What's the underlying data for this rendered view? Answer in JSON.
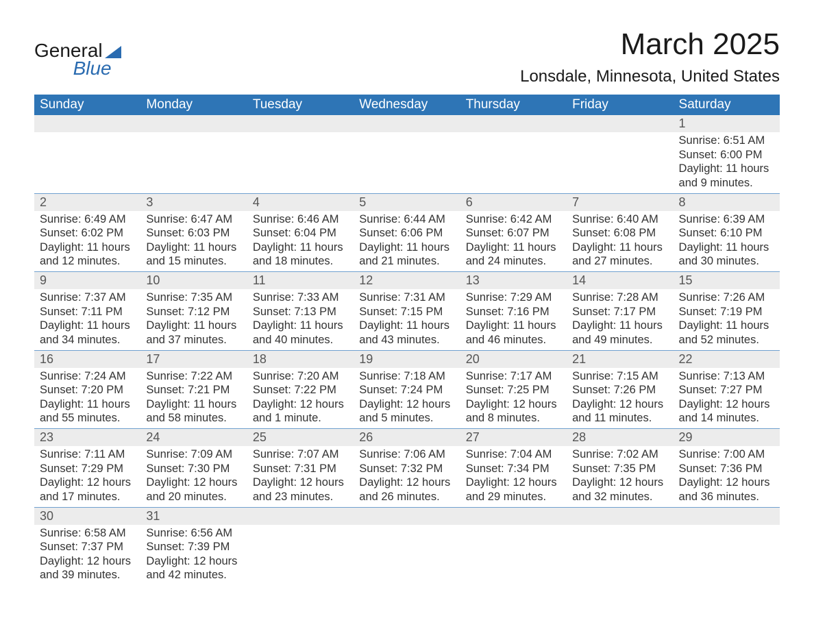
{
  "logo": {
    "line1": "General",
    "line2": "Blue"
  },
  "title": "March 2025",
  "location": "Lonsdale, Minnesota, United States",
  "weekdays": [
    "Sunday",
    "Monday",
    "Tuesday",
    "Wednesday",
    "Thursday",
    "Friday",
    "Saturday"
  ],
  "colors": {
    "header_bg": "#2e75b6",
    "header_text": "#ffffff",
    "daynum_bg": "#ececec",
    "row_border": "#6fa0cf",
    "logo_accent": "#2a6bb0"
  },
  "weeks": [
    [
      null,
      null,
      null,
      null,
      null,
      null,
      {
        "n": "1",
        "sr": "6:51 AM",
        "ss": "6:00 PM",
        "dl": "11 hours and 9 minutes."
      }
    ],
    [
      {
        "n": "2",
        "sr": "6:49 AM",
        "ss": "6:02 PM",
        "dl": "11 hours and 12 minutes."
      },
      {
        "n": "3",
        "sr": "6:47 AM",
        "ss": "6:03 PM",
        "dl": "11 hours and 15 minutes."
      },
      {
        "n": "4",
        "sr": "6:46 AM",
        "ss": "6:04 PM",
        "dl": "11 hours and 18 minutes."
      },
      {
        "n": "5",
        "sr": "6:44 AM",
        "ss": "6:06 PM",
        "dl": "11 hours and 21 minutes."
      },
      {
        "n": "6",
        "sr": "6:42 AM",
        "ss": "6:07 PM",
        "dl": "11 hours and 24 minutes."
      },
      {
        "n": "7",
        "sr": "6:40 AM",
        "ss": "6:08 PM",
        "dl": "11 hours and 27 minutes."
      },
      {
        "n": "8",
        "sr": "6:39 AM",
        "ss": "6:10 PM",
        "dl": "11 hours and 30 minutes."
      }
    ],
    [
      {
        "n": "9",
        "sr": "7:37 AM",
        "ss": "7:11 PM",
        "dl": "11 hours and 34 minutes."
      },
      {
        "n": "10",
        "sr": "7:35 AM",
        "ss": "7:12 PM",
        "dl": "11 hours and 37 minutes."
      },
      {
        "n": "11",
        "sr": "7:33 AM",
        "ss": "7:13 PM",
        "dl": "11 hours and 40 minutes."
      },
      {
        "n": "12",
        "sr": "7:31 AM",
        "ss": "7:15 PM",
        "dl": "11 hours and 43 minutes."
      },
      {
        "n": "13",
        "sr": "7:29 AM",
        "ss": "7:16 PM",
        "dl": "11 hours and 46 minutes."
      },
      {
        "n": "14",
        "sr": "7:28 AM",
        "ss": "7:17 PM",
        "dl": "11 hours and 49 minutes."
      },
      {
        "n": "15",
        "sr": "7:26 AM",
        "ss": "7:19 PM",
        "dl": "11 hours and 52 minutes."
      }
    ],
    [
      {
        "n": "16",
        "sr": "7:24 AM",
        "ss": "7:20 PM",
        "dl": "11 hours and 55 minutes."
      },
      {
        "n": "17",
        "sr": "7:22 AM",
        "ss": "7:21 PM",
        "dl": "11 hours and 58 minutes."
      },
      {
        "n": "18",
        "sr": "7:20 AM",
        "ss": "7:22 PM",
        "dl": "12 hours and 1 minute."
      },
      {
        "n": "19",
        "sr": "7:18 AM",
        "ss": "7:24 PM",
        "dl": "12 hours and 5 minutes."
      },
      {
        "n": "20",
        "sr": "7:17 AM",
        "ss": "7:25 PM",
        "dl": "12 hours and 8 minutes."
      },
      {
        "n": "21",
        "sr": "7:15 AM",
        "ss": "7:26 PM",
        "dl": "12 hours and 11 minutes."
      },
      {
        "n": "22",
        "sr": "7:13 AM",
        "ss": "7:27 PM",
        "dl": "12 hours and 14 minutes."
      }
    ],
    [
      {
        "n": "23",
        "sr": "7:11 AM",
        "ss": "7:29 PM",
        "dl": "12 hours and 17 minutes."
      },
      {
        "n": "24",
        "sr": "7:09 AM",
        "ss": "7:30 PM",
        "dl": "12 hours and 20 minutes."
      },
      {
        "n": "25",
        "sr": "7:07 AM",
        "ss": "7:31 PM",
        "dl": "12 hours and 23 minutes."
      },
      {
        "n": "26",
        "sr": "7:06 AM",
        "ss": "7:32 PM",
        "dl": "12 hours and 26 minutes."
      },
      {
        "n": "27",
        "sr": "7:04 AM",
        "ss": "7:34 PM",
        "dl": "12 hours and 29 minutes."
      },
      {
        "n": "28",
        "sr": "7:02 AM",
        "ss": "7:35 PM",
        "dl": "12 hours and 32 minutes."
      },
      {
        "n": "29",
        "sr": "7:00 AM",
        "ss": "7:36 PM",
        "dl": "12 hours and 36 minutes."
      }
    ],
    [
      {
        "n": "30",
        "sr": "6:58 AM",
        "ss": "7:37 PM",
        "dl": "12 hours and 39 minutes."
      },
      {
        "n": "31",
        "sr": "6:56 AM",
        "ss": "7:39 PM",
        "dl": "12 hours and 42 minutes."
      },
      null,
      null,
      null,
      null,
      null
    ]
  ],
  "labels": {
    "sunrise": "Sunrise:",
    "sunset": "Sunset:",
    "daylight": "Daylight:"
  }
}
